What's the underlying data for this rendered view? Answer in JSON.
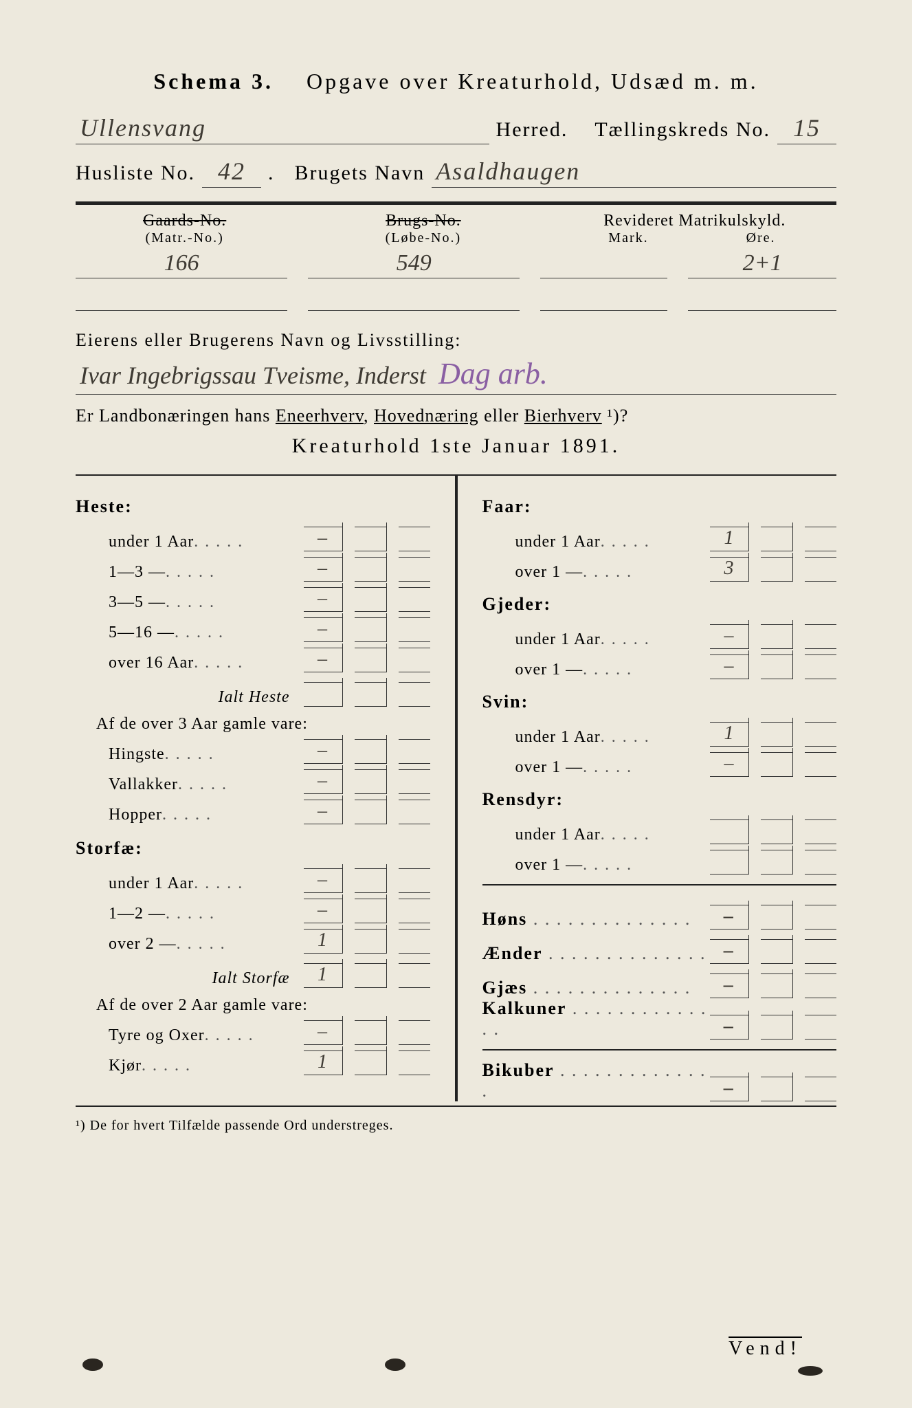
{
  "title_prefix": "Schema 3.",
  "title_main": "Opgave over Kreaturhold, Udsæd m. m.",
  "herred_label": "Herred.",
  "taellingskreds_label": "Tællingskreds No.",
  "husliste_label": "Husliste No.",
  "brugets_navn_label": "Brugets Navn",
  "herred_value": "Ullensvang",
  "taellingskreds_value": "15",
  "husliste_value": "42",
  "brugets_navn_value": "Asaldhaugen",
  "col_headers": {
    "gaards_no": "Gaards-No.",
    "matr_no": "(Matr.-No.)",
    "brugs_no": "Brugs-No.",
    "lobe_no": "(Løbe-No.)",
    "revideret": "Revideret Matrikulskyld.",
    "mark": "Mark.",
    "ore": "Øre."
  },
  "matr_values": {
    "gaards": [
      "166",
      ""
    ],
    "brugs": [
      "549",
      ""
    ],
    "mark": [
      "",
      ""
    ],
    "ore": [
      "2+1",
      ""
    ]
  },
  "owner_heading": "Eierens eller Brugerens Navn og Livsstilling:",
  "owner_value": "Ivar Ingebrigssau Tveisme, Inderst",
  "owner_annotation": "Dag arb.",
  "question_text_1": "Er Landbonæringen hans ",
  "question_opts": [
    "Eneerhverv",
    "Hovednæring",
    "Bierhverv"
  ],
  "question_text_2": " eller ",
  "question_suffix": "¹)?",
  "kreatur_heading": "Kreaturhold 1ste Januar 1891.",
  "left": {
    "heste": {
      "title": "Heste:",
      "rows": [
        {
          "label": "under 1 Aar",
          "val": "–"
        },
        {
          "label": "1—3  —",
          "val": "–"
        },
        {
          "label": "3—5  —",
          "val": "–"
        },
        {
          "label": "5—16 —",
          "val": "–"
        },
        {
          "label": "over 16 Aar",
          "val": "–"
        }
      ],
      "total_label": "Ialt Heste",
      "total_val": "",
      "sub_heading": "Af de over 3 Aar gamle vare:",
      "sub_rows": [
        {
          "label": "Hingste",
          "val": "–"
        },
        {
          "label": "Vallakker",
          "val": "–"
        },
        {
          "label": "Hopper",
          "val": "–"
        }
      ]
    },
    "storfae": {
      "title": "Storfæ:",
      "rows": [
        {
          "label": "under 1 Aar",
          "val": "–"
        },
        {
          "label": "1—2  —",
          "val": "–"
        },
        {
          "label": "over 2  —",
          "val": "1"
        }
      ],
      "total_label": "Ialt Storfæ",
      "total_val": "1",
      "sub_heading": "Af de over 2 Aar gamle vare:",
      "sub_rows": [
        {
          "label": "Tyre og Oxer",
          "val": "–"
        },
        {
          "label": "Kjør",
          "val": "1"
        }
      ]
    }
  },
  "right": {
    "faar": {
      "title": "Faar:",
      "rows": [
        {
          "label": "under 1 Aar",
          "val": "1"
        },
        {
          "label": "over 1  —",
          "val": "3"
        }
      ]
    },
    "gjeder": {
      "title": "Gjeder:",
      "rows": [
        {
          "label": "under 1 Aar",
          "val": "–"
        },
        {
          "label": "over 1  —",
          "val": "–"
        }
      ]
    },
    "svin": {
      "title": "Svin:",
      "rows": [
        {
          "label": "under 1 Aar",
          "val": "1"
        },
        {
          "label": "over 1  —",
          "val": "–"
        }
      ]
    },
    "rensdyr": {
      "title": "Rensdyr:",
      "rows": [
        {
          "label": "under 1 Aar",
          "val": ""
        },
        {
          "label": "over 1  —",
          "val": ""
        }
      ]
    },
    "simple": [
      {
        "label": "Høns",
        "val": "–"
      },
      {
        "label": "Ænder",
        "val": "–"
      },
      {
        "label": "Gjæs",
        "val": "–"
      },
      {
        "label": "Kalkuner",
        "val": "–"
      },
      {
        "label": "Bikuber",
        "val": "–"
      }
    ]
  },
  "footnote": "¹) De for hvert Tilfælde passende Ord understreges.",
  "vend": "Vend!"
}
